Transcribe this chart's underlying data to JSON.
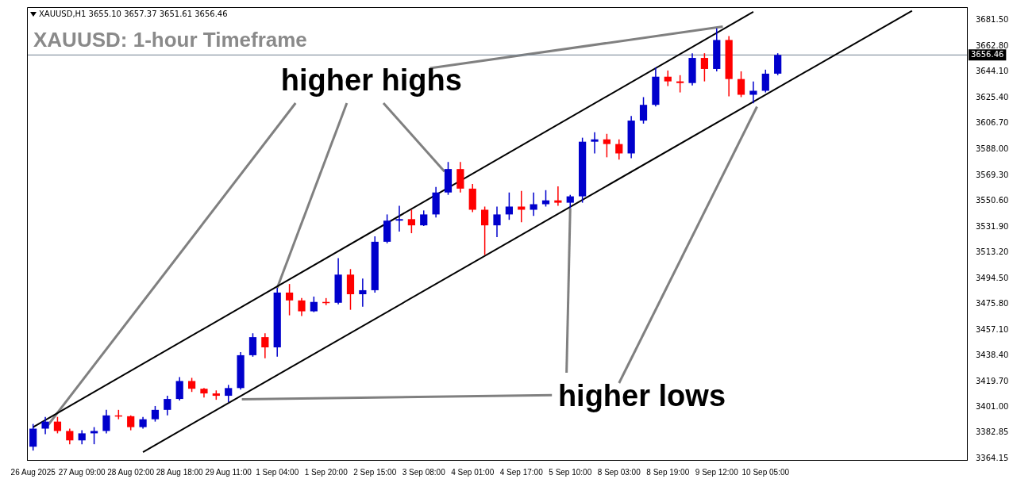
{
  "chart_data": {
    "type": "candlestick",
    "title": "XAUUSD: 1-hour Timeframe",
    "subtitle": "XAUUSD,H1  3655.10 3657.37 3651.61 3656.46",
    "annotations": [
      {
        "text": "higher highs",
        "x": "1 Sep 04:00",
        "y": 3487.7
      },
      {
        "text": "higher lows",
        "x": "5 Sep 10:00",
        "y": 3545.5
      }
    ],
    "categories": [
      "26 Aug 2025",
      null,
      null,
      null,
      "27 Aug 09:00",
      null,
      null,
      null,
      "28 Aug 02:00",
      null,
      null,
      null,
      "28 Aug 18:00",
      null,
      null,
      null,
      "29 Aug 11:00",
      null,
      null,
      null,
      "1 Sep 04:00",
      null,
      null,
      null,
      "1 Sep 20:00",
      null,
      null,
      null,
      "2 Sep 15:00",
      null,
      null,
      null,
      "3 Sep 08:00",
      null,
      null,
      null,
      "4 Sep 01:00",
      null,
      null,
      null,
      "4 Sep 17:00",
      null,
      null,
      null,
      "5 Sep 10:00",
      null,
      null,
      null,
      "8 Sep 03:00",
      null,
      null,
      null,
      "8 Sep 19:00",
      null,
      null,
      null,
      "9 Sep 12:00",
      null,
      null,
      null,
      "10 Sep 05:00",
      null,
      null,
      null,
      null,
      null,
      null,
      null,
      null,
      null,
      null,
      null,
      null,
      null,
      null,
      null,
      null
    ],
    "series": [
      {
        "type": "candlestick",
        "ohlc": [
          [
            3372.6,
            3389.1,
            3369.8,
            3385.7
          ],
          [
            3385.7,
            3394.2,
            3381.7,
            3390.8
          ],
          [
            3390.8,
            3394.2,
            3382.3,
            3384.0
          ],
          [
            3384.0,
            3385.7,
            3374.4,
            3377.2
          ],
          [
            3377.2,
            3384.5,
            3374.4,
            3382.3
          ],
          [
            3382.3,
            3386.8,
            3374.4,
            3384.0
          ],
          [
            3384.0,
            3399.3,
            3382.3,
            3395.3
          ],
          [
            3395.3,
            3399.3,
            3392.5,
            3394.7
          ],
          [
            3394.7,
            3395.3,
            3384.5,
            3386.8
          ],
          [
            3386.8,
            3394.2,
            3385.7,
            3392.5
          ],
          [
            3392.5,
            3402.1,
            3390.8,
            3399.3
          ],
          [
            3399.3,
            3409.5,
            3395.3,
            3407.2
          ],
          [
            3407.2,
            3423.1,
            3406.1,
            3420.2
          ],
          [
            3420.2,
            3422.5,
            3412.3,
            3414.6
          ],
          [
            3414.6,
            3415.1,
            3408.3,
            3411.2
          ],
          [
            3411.2,
            3413.4,
            3406.6,
            3409.5
          ],
          [
            3409.5,
            3417.4,
            3404.9,
            3415.1
          ],
          [
            3415.1,
            3441.2,
            3414.0,
            3438.9
          ],
          [
            3438.9,
            3454.8,
            3437.8,
            3452.0
          ],
          [
            3452.0,
            3454.8,
            3436.7,
            3444.6
          ],
          [
            3444.6,
            3487.7,
            3437.8,
            3484.3
          ],
          [
            3484.3,
            3490.5,
            3467.8,
            3478.6
          ],
          [
            3478.6,
            3480.3,
            3467.3,
            3470.7
          ],
          [
            3470.7,
            3481.4,
            3470.1,
            3477.5
          ],
          [
            3477.5,
            3480.3,
            3475.2,
            3476.9
          ],
          [
            3476.9,
            3509.2,
            3475.8,
            3497.3
          ],
          [
            3497.3,
            3501.3,
            3471.8,
            3483.1
          ],
          [
            3483.1,
            3494.5,
            3474.1,
            3486.0
          ],
          [
            3486.0,
            3525.1,
            3484.3,
            3521.1
          ],
          [
            3521.1,
            3540.9,
            3520.0,
            3536.4
          ],
          [
            3536.4,
            3547.2,
            3528.5,
            3537.5
          ],
          [
            3537.5,
            3544.3,
            3527.3,
            3533.0
          ],
          [
            3533.0,
            3543.8,
            3532.5,
            3540.9
          ],
          [
            3540.9,
            3560.8,
            3538.7,
            3556.8
          ],
          [
            3556.8,
            3578.9,
            3555.1,
            3573.8
          ],
          [
            3573.8,
            3578.9,
            3556.8,
            3559.6
          ],
          [
            3559.6,
            3563.0,
            3542.6,
            3544.3
          ],
          [
            3544.3,
            3546.6,
            3511.5,
            3533.0
          ],
          [
            3533.0,
            3546.6,
            3524.5,
            3540.9
          ],
          [
            3540.9,
            3556.8,
            3537.0,
            3546.6
          ],
          [
            3546.6,
            3557.9,
            3535.3,
            3544.3
          ],
          [
            3544.3,
            3556.8,
            3539.8,
            3548.3
          ],
          [
            3548.3,
            3558.5,
            3546.6,
            3551.1
          ],
          [
            3551.1,
            3561.3,
            3547.2,
            3549.4
          ],
          [
            3549.4,
            3555.1,
            3545.5,
            3554.0
          ],
          [
            3554.0,
            3596.5,
            3549.4,
            3593.6
          ],
          [
            3593.6,
            3600.4,
            3585.1,
            3595.3
          ],
          [
            3595.3,
            3599.3,
            3582.3,
            3591.9
          ],
          [
            3591.9,
            3595.3,
            3580.6,
            3585.1
          ],
          [
            3585.1,
            3612.3,
            3581.7,
            3608.9
          ],
          [
            3608.9,
            3625.9,
            3606.7,
            3620.3
          ],
          [
            3620.3,
            3647.5,
            3619.1,
            3640.7
          ],
          [
            3640.7,
            3645.2,
            3633.9,
            3637.3
          ],
          [
            3637.3,
            3641.8,
            3629.3,
            3636.1
          ],
          [
            3636.1,
            3657.7,
            3634.4,
            3654.3
          ],
          [
            3654.3,
            3657.7,
            3637.3,
            3646.3
          ],
          [
            3646.3,
            3675.8,
            3644.6,
            3667.3
          ],
          [
            3667.3,
            3670.1,
            3626.5,
            3639.0
          ],
          [
            3639.0,
            3644.6,
            3625.9,
            3627.6
          ],
          [
            3627.6,
            3637.3,
            3621.4,
            3630.5
          ],
          [
            3630.5,
            3645.8,
            3629.3,
            3642.9
          ],
          [
            3642.9,
            3657.7,
            3641.8,
            3656.46
          ],
          null,
          null,
          null,
          null,
          null,
          null,
          null,
          null,
          null,
          null,
          null,
          null,
          null,
          null,
          null
        ],
        "colors": [
          "#0000cc",
          "#0000cc",
          "#ff0000",
          "#ff0000",
          "#0000cc",
          "#0000cc",
          "#0000cc",
          "#ff0000",
          "#ff0000",
          "#0000cc",
          "#0000cc",
          "#0000cc",
          "#0000cc",
          "#ff0000",
          "#ff0000",
          "#ff0000",
          "#0000cc",
          "#0000cc",
          "#0000cc",
          "#ff0000",
          "#0000cc",
          "#ff0000",
          "#ff0000",
          "#0000cc",
          "#ff0000",
          "#0000cc",
          "#ff0000",
          "#0000cc",
          "#0000cc",
          "#0000cc",
          "#0000cc",
          "#ff0000",
          "#0000cc",
          "#0000cc",
          "#0000cc",
          "#ff0000",
          "#ff0000",
          "#ff0000",
          "#0000cc",
          "#0000cc",
          "#ff0000",
          "#0000cc",
          "#0000cc",
          "#ff0000",
          "#0000cc",
          "#0000cc",
          "#0000cc",
          "#ff0000",
          "#ff0000",
          "#0000cc",
          "#0000cc",
          "#0000cc",
          "#ff0000",
          "#ff0000",
          "#0000cc",
          "#ff0000",
          "#0000cc",
          "#ff0000",
          "#ff0000",
          "#0000cc",
          "#0000cc",
          "#0000cc",
          null,
          null,
          null,
          null,
          null,
          null,
          null,
          null,
          null,
          null,
          null,
          null,
          null,
          null,
          null
        ]
      },
      {
        "type": "line",
        "color": "#000000",
        "values": [
          3386.8,
          null,
          null,
          null,
          null,
          null,
          null,
          null,
          null,
          null,
          null,
          null,
          null,
          null,
          null,
          null,
          null,
          null,
          null,
          null,
          null,
          null,
          null,
          null,
          null,
          null,
          null,
          null,
          null,
          null,
          null,
          null,
          null,
          null,
          null,
          null,
          null,
          null,
          null,
          null,
          null,
          null,
          null,
          null,
          null,
          null,
          null,
          null,
          null,
          null,
          null,
          null,
          null,
          null,
          null,
          null,
          null,
          null,
          null,
          3687.7,
          null,
          null,
          null,
          null,
          null,
          null,
          null,
          null,
          null,
          null,
          null,
          null,
          null,
          null,
          null,
          null,
          null
        ]
      },
      {
        "type": "line",
        "color": "#000000",
        "values": [
          null,
          null,
          null,
          null,
          null,
          null,
          null,
          null,
          null,
          3368.7,
          null,
          null,
          null,
          null,
          null,
          null,
          null,
          null,
          null,
          null,
          null,
          null,
          null,
          null,
          null,
          null,
          null,
          null,
          null,
          null,
          null,
          null,
          null,
          null,
          null,
          null,
          null,
          null,
          null,
          null,
          null,
          null,
          null,
          null,
          null,
          null,
          null,
          null,
          null,
          null,
          null,
          null,
          null,
          null,
          null,
          null,
          null,
          null,
          null,
          null,
          null,
          null,
          null,
          null,
          null,
          null,
          null,
          null,
          null,
          null,
          null,
          null,
          3688.5,
          null,
          null,
          null,
          null
        ]
      }
    ],
    "ylim": [
      3363.0,
      3691.1
    ],
    "yticks": [
      {
        "value": 3364.15,
        "label": "3364.15"
      },
      {
        "value": 3382.85,
        "label": "3382.85"
      },
      {
        "value": 3401.0,
        "label": "3401.00"
      },
      {
        "value": 3419.7,
        "label": "3419.70"
      },
      {
        "value": 3438.4,
        "label": "3438.40"
      },
      {
        "value": 3457.1,
        "label": "3457.10"
      },
      {
        "value": 3475.8,
        "label": "3475.80"
      },
      {
        "value": 3494.5,
        "label": "3494.50"
      },
      {
        "value": 3513.2,
        "label": "3513.20"
      },
      {
        "value": 3531.9,
        "label": "3531.90"
      },
      {
        "value": 3550.6,
        "label": "3550.60"
      },
      {
        "value": 3569.3,
        "label": "3569.30"
      },
      {
        "value": 3588.0,
        "label": "3588.00"
      },
      {
        "value": 3606.7,
        "label": "3606.70"
      },
      {
        "value": 3625.4,
        "label": "3625.40"
      },
      {
        "value": 3644.1,
        "label": "3644.10"
      },
      {
        "value": 3662.8,
        "label": "3662.80"
      },
      {
        "value": 3681.5,
        "label": "3681.50"
      }
    ],
    "ref_lines": [
      {
        "axis": "y",
        "value": 3656.46,
        "label": "3656.46",
        "color": "#708090"
      }
    ]
  }
}
